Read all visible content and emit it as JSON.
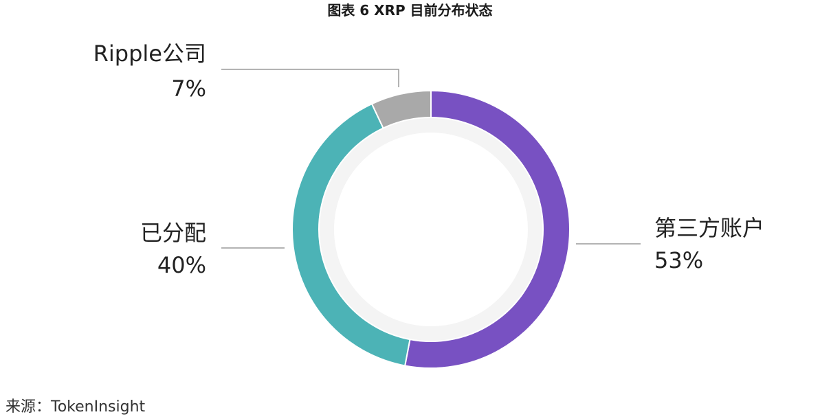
{
  "chart_data": {
    "type": "pie",
    "variant": "donut",
    "title": "图表 6 XRP 目前分布状态",
    "categories": [
      "第三方账户",
      "已分配",
      "Ripple公司"
    ],
    "values": [
      53,
      40,
      7
    ],
    "value_labels": [
      "53%",
      "40%",
      "7%"
    ],
    "unit": "%",
    "colors": [
      "#7851c2",
      "#4cb3b6",
      "#a9a9a9"
    ],
    "inner_track_color": "#f4f4f4",
    "leader_line_color": "#9a9a9a",
    "grid": false
  },
  "source": "来源：TokenInsight"
}
